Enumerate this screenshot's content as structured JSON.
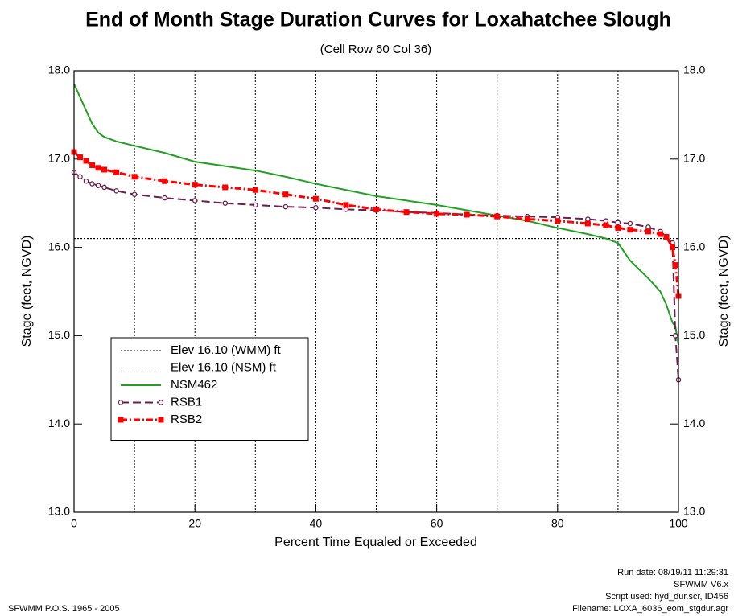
{
  "chart_data": {
    "type": "line",
    "title": "End of Month Stage Duration Curves for Loxahatchee Slough",
    "subtitle": "(Cell Row 60 Col 36)",
    "xlabel": "Percent Time Equaled or Exceeded",
    "ylabel": "Stage (feet, NGVD)",
    "y2label": "Stage (feet, NGVD)",
    "xlim": [
      0,
      100
    ],
    "xticks": [
      0,
      20,
      40,
      60,
      80,
      100
    ],
    "xgrid": [
      10,
      20,
      30,
      40,
      50,
      60,
      70,
      80,
      90
    ],
    "ylim": [
      13,
      18
    ],
    "yticks": [
      {
        "value": 13,
        "label": "13.0"
      },
      {
        "value": 14,
        "label": "14.0"
      },
      {
        "value": 15,
        "label": "15.0"
      },
      {
        "value": 16,
        "label": "16.0"
      },
      {
        "value": 17,
        "label": "17.0"
      },
      {
        "value": 18,
        "label": "18.0"
      }
    ],
    "y2lim": [
      13,
      18
    ],
    "y2ticks": [
      {
        "value": 13,
        "label": "13.0"
      },
      {
        "value": 14,
        "label": "14.0"
      },
      {
        "value": 15,
        "label": "15.0"
      },
      {
        "value": 16,
        "label": "16.0"
      },
      {
        "value": 17,
        "label": "17.0"
      },
      {
        "value": 18,
        "label": "18.0"
      }
    ],
    "reference_lines": [
      {
        "name": "Elev 16.10 (WMM) ft",
        "value": 16.1,
        "color": "#000000"
      },
      {
        "name": "Elev 16.10 (NSM) ft",
        "value": 16.1,
        "color": "#000000"
      }
    ],
    "x": [
      0,
      1,
      2,
      3,
      4,
      5,
      7,
      10,
      15,
      20,
      25,
      30,
      35,
      40,
      45,
      50,
      55,
      60,
      65,
      70,
      75,
      80,
      85,
      88,
      90,
      92,
      95,
      97,
      98,
      99,
      99.5,
      100
    ],
    "series": [
      {
        "name": "NSM462",
        "color": "#22a022",
        "line_style": "solid",
        "marker": "none",
        "values": [
          17.85,
          17.7,
          17.55,
          17.4,
          17.3,
          17.25,
          17.2,
          17.15,
          17.07,
          16.97,
          16.92,
          16.87,
          16.8,
          16.72,
          16.65,
          16.58,
          16.53,
          16.48,
          16.42,
          16.36,
          16.3,
          16.22,
          16.15,
          16.1,
          16.05,
          15.85,
          15.65,
          15.5,
          15.35,
          15.15,
          15.1,
          14.9
        ]
      },
      {
        "name": "RSB1",
        "color": "#6b1f4e",
        "line_style": "dashed",
        "marker": "circle",
        "values": [
          16.85,
          16.8,
          16.75,
          16.72,
          16.7,
          16.68,
          16.64,
          16.6,
          16.56,
          16.53,
          16.5,
          16.48,
          16.46,
          16.45,
          16.43,
          16.42,
          16.4,
          16.39,
          16.37,
          16.36,
          16.35,
          16.34,
          16.32,
          16.3,
          16.28,
          16.27,
          16.23,
          16.18,
          16.12,
          16.05,
          15.0,
          14.5
        ]
      },
      {
        "name": "RSB2",
        "color": "#ff0000",
        "line_style": "dashdot",
        "marker": "square",
        "values": [
          17.08,
          17.02,
          16.98,
          16.93,
          16.9,
          16.88,
          16.85,
          16.8,
          16.75,
          16.71,
          16.68,
          16.65,
          16.6,
          16.55,
          16.48,
          16.43,
          16.4,
          16.38,
          16.37,
          16.35,
          16.32,
          16.3,
          16.27,
          16.25,
          16.22,
          16.2,
          16.18,
          16.15,
          16.12,
          16.0,
          15.8,
          15.45
        ]
      }
    ],
    "legend": "lower left",
    "footer_left": "SFWMM P.O.S. 1965 - 2005",
    "footer_right": [
      "Run date: 08/19/11 11:29:31",
      "SFWMM V6.x",
      "Script used: hyd_dur.scr, ID456",
      "Filename: LOXA_6036_eom_stgdur.agr"
    ]
  }
}
